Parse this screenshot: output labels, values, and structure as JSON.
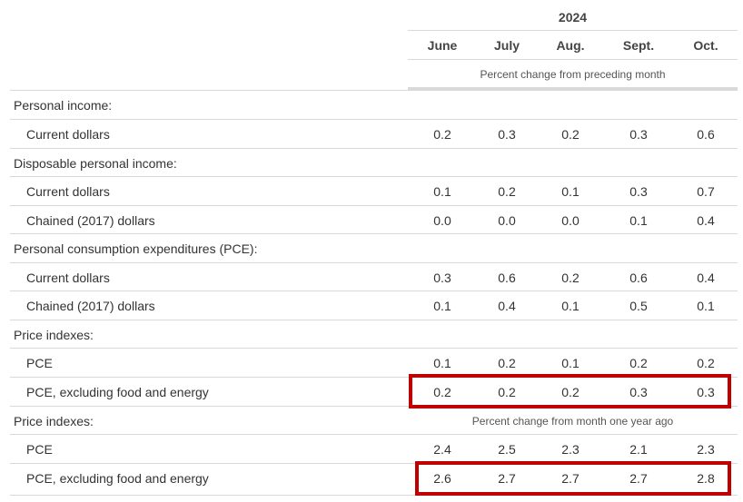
{
  "header": {
    "year": "2024",
    "months": [
      "June",
      "July",
      "Aug.",
      "Sept.",
      "Oct."
    ],
    "units_note": "Percent change from preceding month"
  },
  "rows": [
    {
      "type": "section",
      "label": "Personal income:"
    },
    {
      "type": "sub",
      "label": "Current dollars",
      "values": [
        "0.2",
        "0.3",
        "0.2",
        "0.3",
        "0.6"
      ]
    },
    {
      "type": "section",
      "label": "Disposable personal income:"
    },
    {
      "type": "sub",
      "label": "Current dollars",
      "values": [
        "0.1",
        "0.2",
        "0.1",
        "0.3",
        "0.7"
      ]
    },
    {
      "type": "sub",
      "label": "Chained (2017) dollars",
      "values": [
        "0.0",
        "0.0",
        "0.0",
        "0.1",
        "0.4"
      ]
    },
    {
      "type": "section",
      "label": "Personal consumption expenditures (PCE):"
    },
    {
      "type": "sub",
      "label": "Current dollars",
      "values": [
        "0.3",
        "0.6",
        "0.2",
        "0.6",
        "0.4"
      ]
    },
    {
      "type": "sub",
      "label": "Chained (2017) dollars",
      "values": [
        "0.1",
        "0.4",
        "0.1",
        "0.5",
        "0.1"
      ]
    },
    {
      "type": "section",
      "label": "Price indexes:"
    },
    {
      "type": "sub",
      "label": "PCE",
      "values": [
        "0.1",
        "0.2",
        "0.1",
        "0.2",
        "0.2"
      ]
    },
    {
      "type": "sub",
      "label": "PCE, excluding food and energy",
      "values": [
        "0.2",
        "0.2",
        "0.2",
        "0.3",
        "0.3"
      ],
      "highlighted": true
    },
    {
      "type": "section",
      "label": "Price indexes:",
      "note": "Percent change from month one year ago"
    },
    {
      "type": "sub",
      "label": "PCE",
      "values": [
        "2.4",
        "2.5",
        "2.3",
        "2.1",
        "2.3"
      ]
    },
    {
      "type": "sub",
      "label": "PCE, excluding food and energy",
      "values": [
        "2.6",
        "2.7",
        "2.7",
        "2.7",
        "2.8"
      ],
      "highlighted": true
    }
  ],
  "colors": {
    "highlight": "#c00000",
    "rule": "#d9d9d9",
    "text": "#333333"
  }
}
